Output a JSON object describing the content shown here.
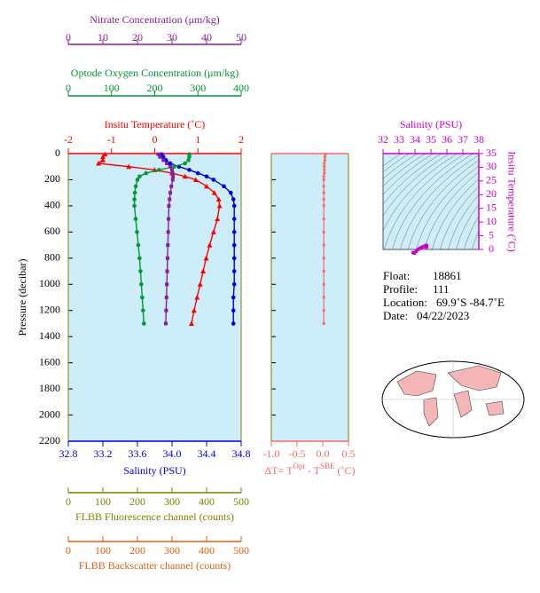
{
  "chart_data": [
    {
      "type": "profile",
      "y_label": "Pressure (decibar)",
      "ylim": [
        0,
        2200
      ],
      "yticks": [
        0,
        200,
        400,
        600,
        800,
        1000,
        1200,
        1400,
        1600,
        1800,
        2000,
        2200
      ],
      "pressure": [
        5,
        25,
        50,
        75,
        100,
        125,
        150,
        175,
        200,
        250,
        300,
        350,
        400,
        500,
        600,
        700,
        800,
        900,
        1000,
        1100,
        1200,
        1300
      ],
      "axes": [
        {
          "label": "Salinity (PSU)",
          "color": "#0000dd",
          "marker": "circle",
          "xlim": [
            32.8,
            34.8
          ],
          "xticks": [
            32.8,
            33.2,
            33.6,
            {
              "value": 34,
              "label": "34.0"
            },
            34.4,
            34.8
          ],
          "values": [
            33.88,
            33.9,
            33.93,
            33.98,
            34.08,
            34.2,
            34.3,
            34.4,
            34.48,
            34.6,
            34.68,
            34.71,
            34.72,
            34.72,
            34.72,
            34.72,
            34.72,
            34.72,
            34.72,
            34.71,
            34.71,
            34.71
          ]
        },
        {
          "label": "Insitu Temperature (˚C)",
          "color": "#ff0000",
          "marker": "triangle",
          "xlim": [
            -2,
            2
          ],
          "xticks": [
            -2,
            -1,
            0,
            1,
            2
          ],
          "values": [
            -1.15,
            -1.2,
            -1.2,
            -1.3,
            -0.6,
            0.0,
            0.4,
            0.7,
            0.95,
            1.2,
            1.38,
            1.48,
            1.5,
            1.45,
            1.36,
            1.27,
            1.19,
            1.12,
            1.05,
            0.98,
            0.91,
            0.85
          ]
        },
        {
          "label": "Optode Oxygen Concentration (μm/kg)",
          "color": "#009933",
          "marker": "circle",
          "xlim": [
            0,
            400
          ],
          "xticks": [
            0,
            100,
            200,
            300,
            400
          ],
          "values": [
            280,
            280,
            278,
            270,
            245,
            210,
            180,
            165,
            160,
            156,
            154,
            153,
            153,
            156,
            159,
            162,
            165,
            167,
            169,
            171,
            173,
            175
          ]
        },
        {
          "label": "Nitrate Concentration (μm/kg)",
          "color": "#8b1c9b",
          "marker": "square",
          "xlim": [
            0,
            50
          ],
          "xticks": [
            0,
            10,
            20,
            30,
            40,
            50
          ],
          "values": [
            26,
            26.5,
            27.5,
            28.5,
            29.5,
            30,
            30.2,
            30.3,
            30.2,
            29.8,
            29.5,
            29.3,
            29.1,
            29,
            28.9,
            28.8,
            28.7,
            28.6,
            28.5,
            28.4,
            28.3,
            28.2
          ]
        },
        {
          "label": "FLBB Fluorescence channel (counts)",
          "color": "#808000",
          "xlim": [
            0,
            500
          ],
          "xticks": [
            0,
            100,
            200,
            300,
            400,
            500
          ]
        },
        {
          "label": "FLBB Backscatter channel (counts)",
          "color": "#e06010",
          "xlim": [
            0,
            500
          ],
          "xticks": [
            0,
            100,
            200,
            300,
            400,
            500
          ]
        }
      ]
    },
    {
      "type": "delta",
      "label": [
        "ΔT= T",
        "Opt",
        " - T",
        "SBE",
        " (˚C)"
      ],
      "color": "#ff6666",
      "xlim": [
        -1,
        0.5
      ],
      "xticks": [
        {
          "value": -1,
          "label": "-1.0"
        },
        -0.5,
        {
          "value": 0,
          "label": "0.0"
        },
        0.5
      ],
      "values": [
        0.05,
        0.04,
        0.04,
        0.03,
        0.03,
        0.03,
        0.03,
        0.02,
        0.02,
        0.02,
        0.02,
        0.02,
        0.02,
        0.02,
        0.02,
        0.02,
        0.02,
        0.02,
        0.02,
        0.02,
        0.02,
        0.02
      ]
    },
    {
      "type": "ts",
      "x_label": "Salinity (PSU)",
      "y_label": "Insitu Temperature (˚C)",
      "color": "#cc00cc",
      "xlim": [
        32,
        38
      ],
      "xticks": [
        32,
        33,
        34,
        35,
        36,
        37,
        38
      ],
      "ylim": [
        0,
        35
      ],
      "yticks": [
        0,
        5,
        10,
        15,
        20,
        25,
        30,
        35
      ]
    }
  ],
  "info": {
    "float": [
      "Float:",
      "18861"
    ],
    "profile": [
      "Profile:",
      "111"
    ],
    "location": [
      "Location:",
      "69.9˚S  -84.7˚E"
    ],
    "date": [
      "Date:",
      "04/22/2023"
    ]
  }
}
